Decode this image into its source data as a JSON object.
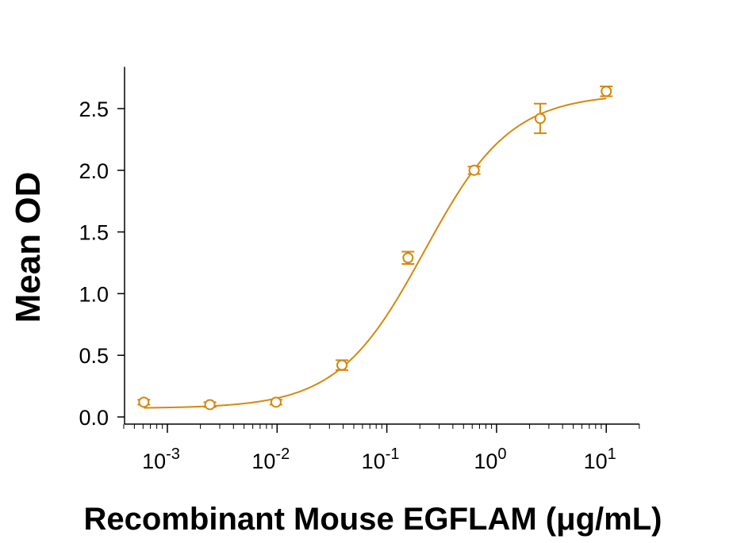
{
  "chart_data": {
    "type": "scatter",
    "xlabel": "Recombinant Mouse EGFLAM (μg/mL)",
    "ylabel": "Mean OD",
    "xscale": "log",
    "xlim": [
      0.0004,
      20
    ],
    "ylim": [
      -0.05,
      2.8
    ],
    "x_ticks": [
      {
        "value": 0.001,
        "base": "10",
        "exp": "-3"
      },
      {
        "value": 0.01,
        "base": "10",
        "exp": "-2"
      },
      {
        "value": 0.1,
        "base": "10",
        "exp": "-1"
      },
      {
        "value": 1,
        "base": "10",
        "exp": "0"
      },
      {
        "value": 10,
        "base": "10",
        "exp": "1"
      }
    ],
    "y_ticks": [
      "0.0",
      "0.5",
      "1.0",
      "1.5",
      "2.0",
      "2.5"
    ],
    "grid": false,
    "legend": "none",
    "color": "#D4880F",
    "series": [
      {
        "x": [
          0.00061,
          0.00244,
          0.00977,
          0.039,
          0.156,
          0.625,
          2.5,
          10
        ],
        "y": [
          0.12,
          0.1,
          0.12,
          0.42,
          1.29,
          2.0,
          2.42,
          2.64
        ],
        "error": [
          0.02,
          0.02,
          0.02,
          0.04,
          0.05,
          0.03,
          0.12,
          0.04
        ]
      }
    ],
    "fit": {
      "model": "4PL",
      "bottom": 0.07,
      "top": 2.62,
      "ec50": 0.22,
      "hill": 1.1
    }
  }
}
